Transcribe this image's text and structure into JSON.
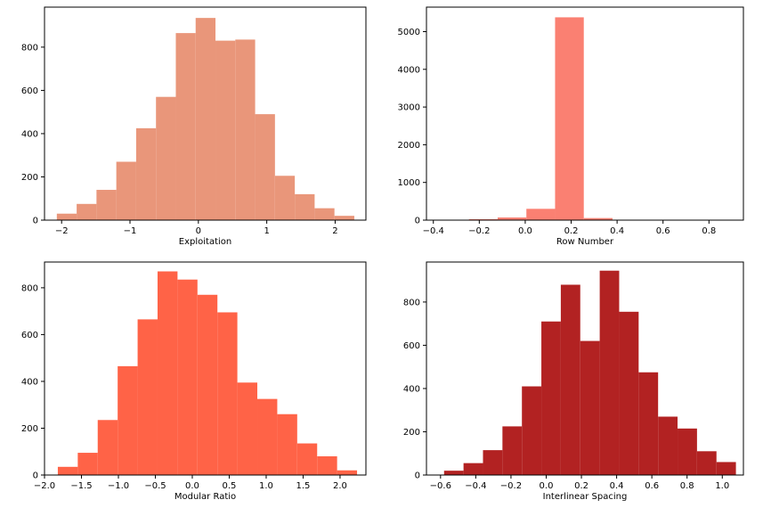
{
  "chart_data": [
    {
      "type": "bar",
      "subtype": "histogram",
      "xlabel": "Exploitation",
      "ylabel": "",
      "color": "#E9967A",
      "xlim": [
        -2.25,
        2.45
      ],
      "ylim": [
        0,
        985
      ],
      "xticks": [
        -2,
        -1,
        0,
        1,
        2
      ],
      "yticks": [
        0,
        200,
        400,
        600,
        800
      ],
      "bin_edges": [
        -2.07,
        -1.78,
        -1.49,
        -1.2,
        -0.91,
        -0.62,
        -0.33,
        -0.04,
        0.25,
        0.54,
        0.83,
        1.12,
        1.41,
        1.7,
        1.99,
        2.28
      ],
      "counts": [
        30,
        75,
        140,
        270,
        425,
        570,
        865,
        935,
        830,
        835,
        490,
        205,
        120,
        55,
        20
      ]
    },
    {
      "type": "bar",
      "subtype": "histogram",
      "xlabel": "Row Number",
      "ylabel": "",
      "color": "#FA8072",
      "xlim": [
        -0.43,
        0.95
      ],
      "ylim": [
        0,
        5650
      ],
      "xticks": [
        -0.4,
        -0.2,
        0.0,
        0.2,
        0.4,
        0.6,
        0.8
      ],
      "yticks": [
        0,
        1000,
        2000,
        3000,
        4000,
        5000
      ],
      "bin_edges": [
        -0.37,
        -0.245,
        -0.12,
        0.005,
        0.13,
        0.255,
        0.38,
        0.505,
        0.63,
        0.755,
        0.88
      ],
      "counts": [
        5,
        25,
        70,
        300,
        5380,
        55,
        10,
        5,
        5,
        5
      ]
    },
    {
      "type": "bar",
      "subtype": "histogram",
      "xlabel": "Modular Ratio",
      "ylabel": "",
      "color": "#FF6347",
      "xlim": [
        -2.0,
        2.35
      ],
      "ylim": [
        0,
        910
      ],
      "xticks": [
        -2.0,
        -1.5,
        -1.0,
        -0.5,
        0.0,
        0.5,
        1.0,
        1.5,
        2.0
      ],
      "yticks": [
        0,
        200,
        400,
        600,
        800
      ],
      "bin_edges": [
        -1.82,
        -1.55,
        -1.28,
        -1.01,
        -0.74,
        -0.47,
        -0.2,
        0.07,
        0.34,
        0.61,
        0.88,
        1.15,
        1.42,
        1.69,
        1.96,
        2.23
      ],
      "counts": [
        35,
        95,
        235,
        465,
        665,
        870,
        835,
        770,
        695,
        395,
        325,
        260,
        135,
        80,
        20
      ]
    },
    {
      "type": "bar",
      "subtype": "histogram",
      "xlabel": "Interlinear Spacing",
      "ylabel": "",
      "color": "#B22222",
      "xlim": [
        -0.68,
        1.12
      ],
      "ylim": [
        0,
        985
      ],
      "xticks": [
        -0.6,
        -0.4,
        -0.2,
        0.0,
        0.2,
        0.4,
        0.6,
        0.8,
        1.0
      ],
      "yticks": [
        0,
        200,
        400,
        600,
        800
      ],
      "bin_edges": [
        -0.58,
        -0.4695,
        -0.359,
        -0.2485,
        -0.138,
        -0.0275,
        0.083,
        0.1935,
        0.304,
        0.4145,
        0.525,
        0.6355,
        0.746,
        0.8565,
        0.967,
        1.0775
      ],
      "counts": [
        20,
        55,
        115,
        225,
        410,
        710,
        880,
        620,
        945,
        755,
        475,
        270,
        215,
        110,
        60
      ]
    }
  ]
}
